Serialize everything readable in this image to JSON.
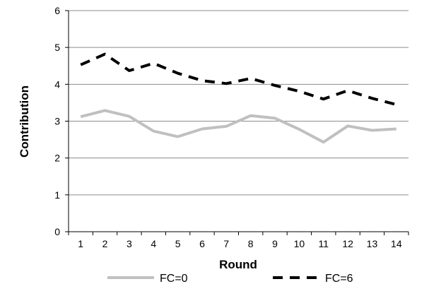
{
  "chart_data": {
    "type": "line",
    "xlabel": "Round",
    "ylabel": "Contribution",
    "categories": [
      "1",
      "2",
      "3",
      "4",
      "5",
      "6",
      "7",
      "8",
      "9",
      "10",
      "11",
      "12",
      "13",
      "14"
    ],
    "ylim": [
      0,
      6
    ],
    "yticks": [
      0,
      1,
      2,
      3,
      4,
      5,
      6
    ],
    "grid": "horizontal",
    "legend_position": "bottom",
    "series": [
      {
        "name": "FC=0",
        "color": "#c0c0c0",
        "style": "solid",
        "values": [
          3.12,
          3.29,
          3.13,
          2.73,
          2.58,
          2.79,
          2.86,
          3.15,
          3.08,
          2.78,
          2.43,
          2.87,
          2.75,
          2.79
        ]
      },
      {
        "name": "FC=6",
        "color": "#000000",
        "style": "dashed",
        "values": [
          4.53,
          4.82,
          4.37,
          4.57,
          4.3,
          4.1,
          4.02,
          4.16,
          3.97,
          3.81,
          3.6,
          3.83,
          3.62,
          3.45
        ]
      }
    ]
  }
}
